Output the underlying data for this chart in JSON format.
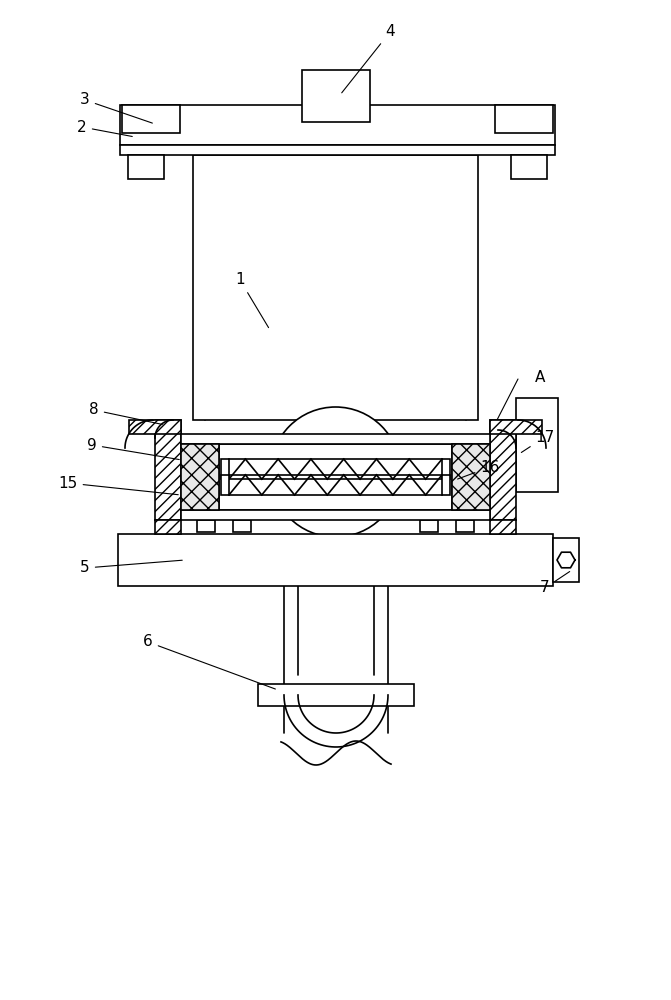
{
  "fig_width": 6.71,
  "fig_height": 10.0,
  "dpi": 100,
  "bg_color": "#ffffff"
}
